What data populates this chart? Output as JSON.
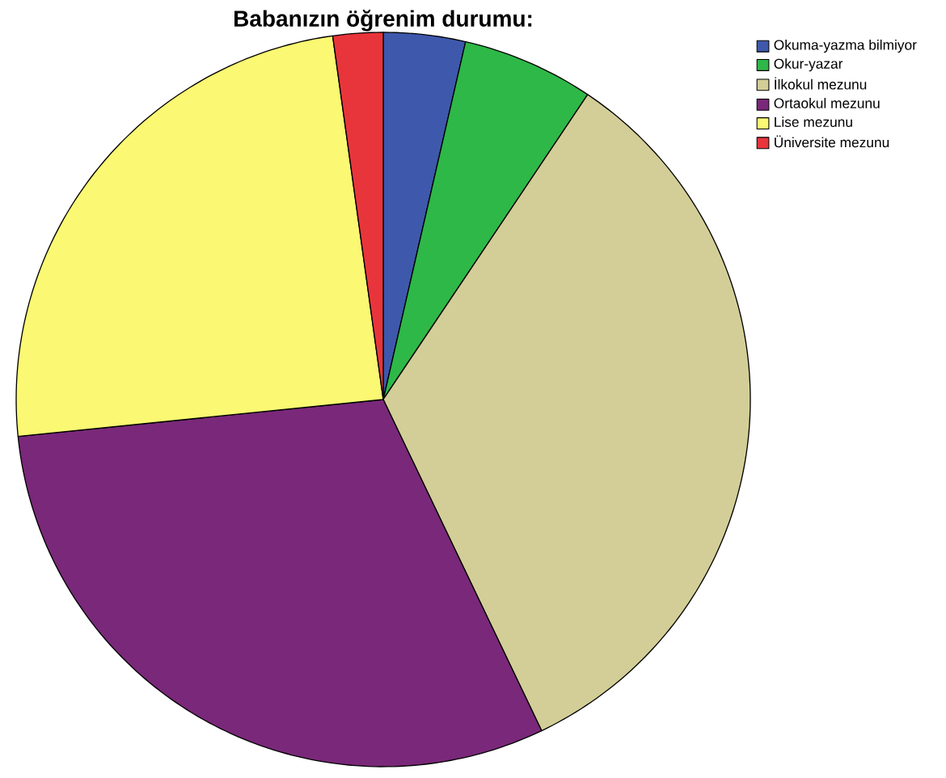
{
  "chart_data": {
    "type": "pie",
    "title": "Babanızın öğrenim durumu:",
    "categories": [
      "Okuma-yazma bilmiyor",
      "Okur-yazar",
      "İlkokul mezunu",
      "Ortaokul mezunu",
      "Lise mezunu",
      "Üniversite mezunu"
    ],
    "values": [
      3.6,
      5.8,
      33.5,
      30.5,
      24.4,
      2.2
    ],
    "colors": [
      "#3e58ac",
      "#2eb848",
      "#d3ce97",
      "#7a287a",
      "#fbf873",
      "#e8353b"
    ],
    "legend": "top right"
  }
}
